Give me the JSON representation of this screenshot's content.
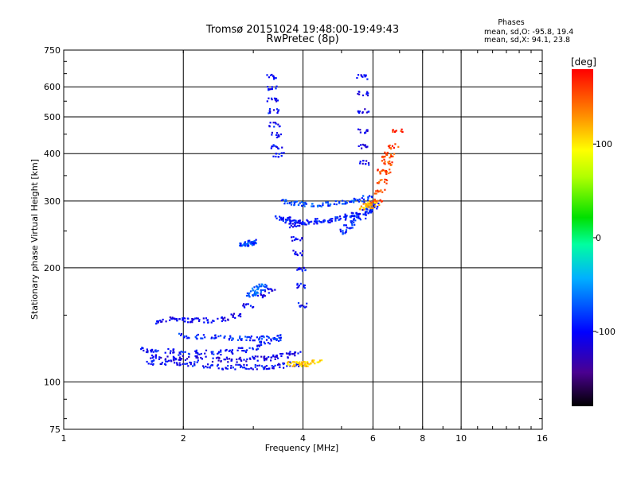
{
  "header": {
    "title_line1": "Tromsø 20151024 19:48:00-19:49:43",
    "title_line2": "RwPretec (8p)",
    "stats_title": "Phases",
    "stats_line1": "mean, sd,O: -95.8, 19.4",
    "stats_line2": "mean, sd,X:  94.1, 23.8"
  },
  "chart_data": {
    "type": "scatter",
    "xlabel": "Frequency [MHz]",
    "ylabel": "Stationary phase Virtual Height [km]",
    "x_scale": "log",
    "y_scale": "log",
    "xlim": [
      1,
      16
    ],
    "ylim": [
      75,
      750
    ],
    "xticks": [
      1,
      2,
      4,
      6,
      8,
      10,
      16
    ],
    "yticks": [
      75,
      100,
      200,
      300,
      400,
      500,
      600,
      750
    ],
    "grid": true,
    "colorbar": {
      "label": "[deg]",
      "range": [
        -180,
        180
      ],
      "ticks": [
        100,
        0,
        -100
      ],
      "colormap": "rainbow"
    },
    "series": [
      {
        "traces": [
          {
            "x": [
              1.75,
              1.85,
              1.95,
              2.05,
              2.15,
              2.3,
              2.5,
              2.7,
              2.9,
              3.1,
              3.3
            ],
            "y": [
              145,
              147,
              147,
              146,
              146,
              146,
              147,
              150,
              160,
              170,
              175
            ],
            "phase": -105
          },
          {
            "x": [
              1.6,
              1.7,
              1.85,
              2.0,
              2.2,
              2.4,
              2.6,
              2.8,
              3.0,
              3.2,
              3.4
            ],
            "y": [
              122,
              121,
              121,
              120,
              120,
              120,
              121,
              122,
              124,
              127,
              130
            ],
            "phase": -95
          },
          {
            "x": [
              1.65,
              1.8,
              1.95,
              2.1,
              2.3,
              2.5,
              2.7,
              2.9,
              3.1,
              3.3,
              3.55,
              3.8
            ],
            "y": [
              113,
              113,
              112,
              112,
              111,
              110,
              110,
              110,
              110,
              110,
              111,
              112
            ],
            "phase": -100
          },
          {
            "x": [
              1.7,
              1.85,
              2.0,
              2.2,
              2.4,
              2.6,
              2.8,
              3.0,
              3.2,
              3.4,
              3.6,
              3.8
            ],
            "y": [
              117,
              116,
              116,
              116,
              115,
              115,
              115,
              116,
              116,
              117,
              118,
              119
            ],
            "phase": -110
          },
          {
            "x": [
              2.0,
              2.2,
              2.4,
              2.6,
              2.8,
              3.0,
              3.2,
              3.4
            ],
            "y": [
              133,
              132,
              132,
              131,
              131,
              131,
              131,
              132
            ],
            "phase": -90
          },
          {
            "x": [
              3.75,
              3.85,
              3.95,
              4.05,
              4.15,
              4.3
            ],
            "y": [
              112,
              112,
              112,
              112,
              112,
              113
            ],
            "phase": 110
          },
          {
            "x": [
              3.3,
              3.32,
              3.34,
              3.36,
              3.38,
              3.4,
              3.42,
              3.45
            ],
            "y": [
              640,
              600,
              560,
              520,
              480,
              450,
              420,
              400
            ],
            "phase": -100
          },
          {
            "x": [
              3.5,
              3.6,
              3.7,
              3.8,
              3.9,
              4.0,
              4.2,
              4.4,
              4.6,
              4.8,
              5.0,
              5.2,
              5.4,
              5.6,
              5.8,
              5.95
            ],
            "y": [
              272,
              270,
              268,
              266,
              265,
              265,
              266,
              267,
              268,
              270,
              272,
              274,
              277,
              280,
              284,
              288
            ],
            "phase": -95
          },
          {
            "x": [
              3.6,
              3.8,
              4.0,
              4.3,
              4.6,
              4.9,
              5.2,
              5.5,
              5.8
            ],
            "y": [
              300,
              298,
              296,
              295,
              296,
              298,
              300,
              303,
              307
            ],
            "phase": -80
          },
          {
            "x": [
              3.8,
              3.84,
              3.88,
              3.92,
              3.96,
              4.0
            ],
            "y": [
              260,
              240,
              220,
              200,
              180,
              160
            ],
            "phase": -100
          },
          {
            "x": [
              5.0,
              5.2,
              5.4,
              5.6,
              5.8,
              6.0
            ],
            "y": [
              250,
              258,
              266,
              275,
              285,
              296
            ],
            "phase": -90
          },
          {
            "x": [
              5.6,
              5.62,
              5.64,
              5.66,
              5.68,
              5.7
            ],
            "y": [
              640,
              580,
              520,
              460,
              420,
              380
            ],
            "phase": -110
          },
          {
            "x": [
              5.7,
              5.8,
              5.9,
              6.0
            ],
            "y": [
              290,
              292,
              295,
              298
            ],
            "phase": 115
          },
          {
            "x": [
              6.1,
              6.2,
              6.3,
              6.4,
              6.5,
              6.6
            ],
            "y": [
              300,
              320,
              340,
              360,
              380,
              400
            ],
            "phase": 150
          },
          {
            "x": [
              6.3,
              6.5,
              6.7,
              6.9
            ],
            "y": [
              360,
              390,
              420,
              460
            ],
            "phase": 160
          },
          {
            "x": [
              2.8,
              2.85,
              2.9,
              2.95,
              3.0
            ],
            "y": [
              232,
              232,
              233,
              234,
              236
            ],
            "phase": -80
          },
          {
            "x": [
              2.95,
              3.0,
              3.05,
              3.1,
              3.15
            ],
            "y": [
              170,
              172,
              175,
              178,
              180
            ],
            "phase": -70
          }
        ]
      }
    ]
  }
}
